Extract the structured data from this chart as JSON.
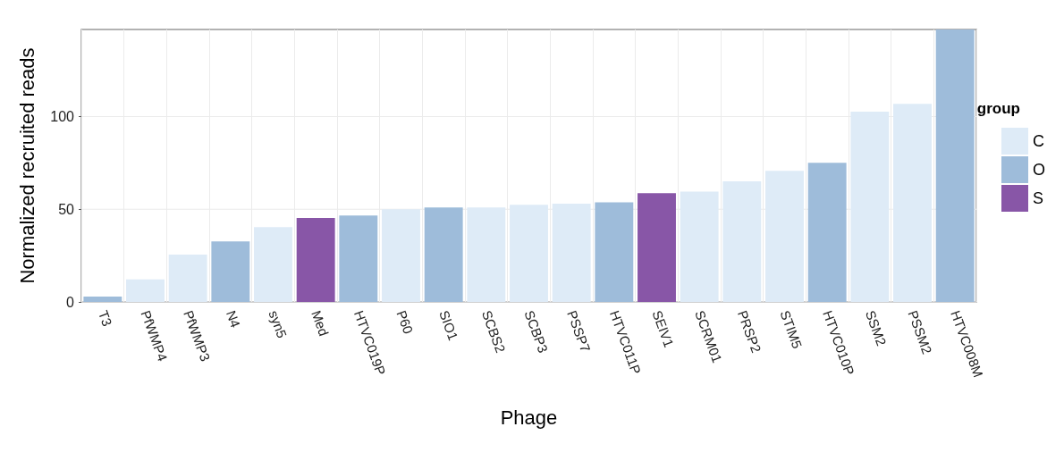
{
  "chart_data": {
    "type": "bar",
    "xlabel": "Phage",
    "ylabel": "Normalized recruited reads",
    "legend_title": "group",
    "legend": "right",
    "grid": true,
    "stacked": true,
    "categories": [
      "T3",
      "PfWMP4",
      "PfWMP3",
      "N4",
      "syn5",
      "Med",
      "HTVC019P",
      "P60",
      "SIO1",
      "SCBS2",
      "SCBP3",
      "PSSP7",
      "HTVC011P",
      "SEIV1",
      "SCRM01",
      "PRSP2",
      "STIM5",
      "HTVC010P",
      "SSM2",
      "PSSM2",
      "HTVC008M"
    ],
    "ylim": [
      0,
      147
    ],
    "yticks": [
      0,
      50,
      100
    ],
    "series": [
      {
        "name": "C",
        "color": "#deebf7",
        "values": [
          null,
          12.2,
          25.6,
          null,
          40.4,
          null,
          null,
          50,
          null,
          51,
          52.4,
          53,
          null,
          null,
          59.5,
          65.1,
          70.7,
          null,
          102.7,
          106.9,
          null
        ]
      },
      {
        "name": "O",
        "color": "#9ebcda",
        "values": [
          2.9,
          null,
          null,
          32.6,
          null,
          null,
          46.6,
          null,
          51,
          null,
          null,
          null,
          53.7,
          null,
          null,
          null,
          null,
          75.1,
          null,
          null,
          147
        ]
      },
      {
        "name": "S",
        "color": "#8856a7",
        "values": [
          null,
          null,
          null,
          null,
          null,
          45.3,
          null,
          null,
          null,
          null,
          null,
          null,
          null,
          58.7,
          null,
          null,
          null,
          null,
          null,
          null,
          null
        ]
      }
    ]
  }
}
